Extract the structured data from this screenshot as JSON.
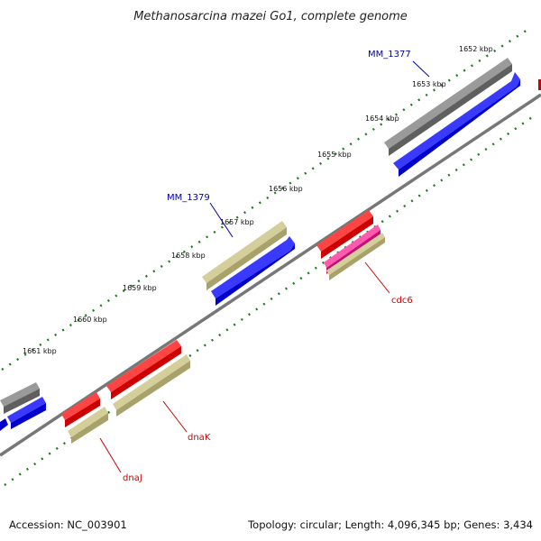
{
  "title": "Methanosarcina mazei Go1, complete genome",
  "footer": {
    "accession": "Accession: NC_003901",
    "summary": "Topology: circular; Length: 4,096,345 bp; Genes: 3,434"
  },
  "tick_labels": [
    "1652 kbp",
    "1653 kbp",
    "1654 kbp",
    "1655 kbp",
    "1656 kbp",
    "1657 kbp",
    "1658 kbp",
    "1659 kbp",
    "1660 kbp",
    "1661 kbp"
  ],
  "gene_labels": {
    "mm1377": "MM_1377",
    "mm1379": "MM_1379",
    "cdc6": "cdc6",
    "dnak": "dnaK",
    "dnaj": "dnaJ"
  },
  "colors": {
    "gray": "#5f5f5f",
    "blue": "#0000ff",
    "olive": "#b8b27a",
    "red": "#ee0000",
    "magenta": "#e0158a",
    "backbone": "#777777",
    "tick_green": "#1a7a1a",
    "label_blue": "#0000aa",
    "label_red": "#cc0000"
  }
}
